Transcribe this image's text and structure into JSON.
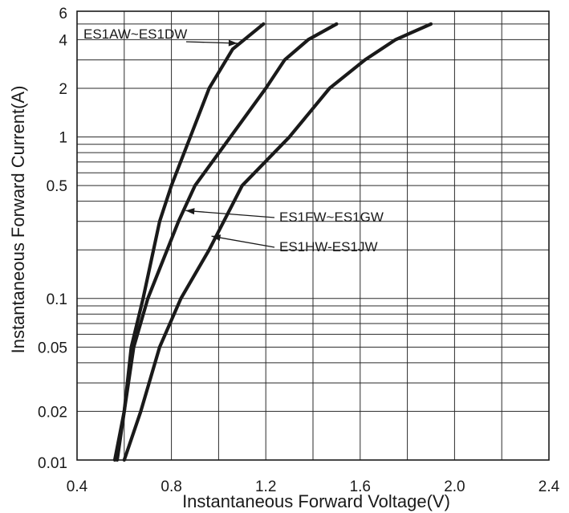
{
  "chart_data": {
    "type": "line",
    "xlabel": "Instantaneous Forward Voltage(V)",
    "ylabel": "Instantaneous Forward Current(A)",
    "xlim": [
      0.4,
      2.4
    ],
    "ylim": [
      0.01,
      6
    ],
    "yscale": "log",
    "grid": true,
    "x_ticks": [
      0.4,
      0.8,
      1.2,
      1.6,
      2.0,
      2.4
    ],
    "x_tick_labels": [
      "0.4",
      "0.8",
      "1.2",
      "1.6",
      "2.0",
      "2.4"
    ],
    "y_ticks": [
      0.01,
      0.02,
      0.05,
      0.1,
      0.5,
      1,
      2,
      4,
      6
    ],
    "y_tick_labels": [
      "0.01",
      "0.02",
      "0.05",
      "0.1",
      "0.5",
      "1",
      "2",
      "4",
      "6"
    ],
    "series": [
      {
        "name": "ES1AW~ES1DW",
        "x": [
          0.56,
          0.6,
          0.63,
          0.68,
          0.75,
          0.8,
          0.88,
          0.96,
          1.06,
          1.19
        ],
        "y": [
          0.01,
          0.02,
          0.05,
          0.1,
          0.3,
          0.5,
          1,
          2,
          3.5,
          5
        ]
      },
      {
        "name": "ES1FW~ES1GW",
        "x": [
          0.57,
          0.6,
          0.64,
          0.7,
          0.83,
          0.9,
          1.05,
          1.2,
          1.28,
          1.38,
          1.5
        ],
        "y": [
          0.01,
          0.02,
          0.05,
          0.1,
          0.3,
          0.5,
          1,
          2,
          3,
          4,
          5
        ]
      },
      {
        "name": "ES1HW-ES1JW",
        "x": [
          0.6,
          0.67,
          0.75,
          0.84,
          0.96,
          1.1,
          1.3,
          1.47,
          1.62,
          1.75,
          1.9
        ],
        "y": [
          0.01,
          0.02,
          0.05,
          0.1,
          0.2,
          0.5,
          1,
          2,
          3,
          4,
          5
        ]
      }
    ]
  }
}
